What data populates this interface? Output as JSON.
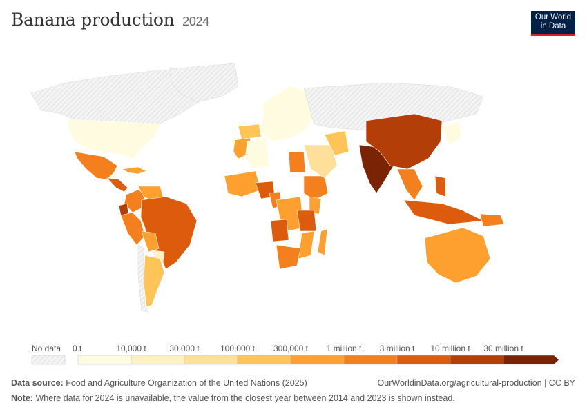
{
  "header": {
    "title": "Banana production",
    "year": "2024"
  },
  "logo": {
    "line1": "Our World",
    "line2": "in Data"
  },
  "legend": {
    "no_data_label": "No data",
    "bins": [
      "0 t",
      "10,000 t",
      "30,000 t",
      "100,000 t",
      "300,000 t",
      "1 million t",
      "3 million t",
      "10 million t",
      "30 million t"
    ],
    "colors": [
      "#fffbe0",
      "#fff2c2",
      "#ffe09a",
      "#ffc457",
      "#fea030",
      "#f4801d",
      "#dd5b0c",
      "#b43e08",
      "#7a2405"
    ]
  },
  "footer": {
    "source_label": "Data source:",
    "source_text": "Food and Agriculture Organization of the United Nations (2025)",
    "url_text": "OurWorldinData.org/agricultural-production | CC BY",
    "note_label": "Note:",
    "note_text": "Where data for 2024 is unavailable, the value from the closest year between 2014 and 2023 is shown instead."
  },
  "regions": [
    {
      "name": "Canada",
      "level": "none"
    },
    {
      "name": "United States",
      "level": 0
    },
    {
      "name": "Mexico",
      "level": 5
    },
    {
      "name": "Central America",
      "level": 6
    },
    {
      "name": "Caribbean",
      "level": 4
    },
    {
      "name": "Colombia",
      "level": 5
    },
    {
      "name": "Venezuela",
      "level": 4
    },
    {
      "name": "Ecuador",
      "level": 7
    },
    {
      "name": "Peru",
      "level": 5
    },
    {
      "name": "Brazil",
      "level": 6
    },
    {
      "name": "Bolivia",
      "level": 4
    },
    {
      "name": "Paraguay",
      "level": 1
    },
    {
      "name": "Argentina",
      "level": 3
    },
    {
      "name": "Chile",
      "level": "none"
    },
    {
      "name": "Greenland",
      "level": "none"
    },
    {
      "name": "Europe",
      "level": 0
    },
    {
      "name": "Spain",
      "level": 3
    },
    {
      "name": "Russia",
      "level": "none"
    },
    {
      "name": "Morocco",
      "level": 4
    },
    {
      "name": "Algeria",
      "level": 0
    },
    {
      "name": "Egypt",
      "level": 5
    },
    {
      "name": "West Africa",
      "level": 4
    },
    {
      "name": "Nigeria",
      "level": 6
    },
    {
      "name": "Cameroon",
      "level": 5
    },
    {
      "name": "DR Congo",
      "level": 4
    },
    {
      "name": "Angola",
      "level": 6
    },
    {
      "name": "Ethiopia",
      "level": 5
    },
    {
      "name": "Kenya",
      "level": 4
    },
    {
      "name": "Tanzania",
      "level": 6
    },
    {
      "name": "Mozambique",
      "level": 4
    },
    {
      "name": "South Africa",
      "level": 5
    },
    {
      "name": "Madagascar",
      "level": 4
    },
    {
      "name": "Saudi Arabia",
      "level": 2
    },
    {
      "name": "Iran",
      "level": 3
    },
    {
      "name": "India",
      "level": 8
    },
    {
      "name": "China",
      "level": 7
    },
    {
      "name": "Southeast Asia",
      "level": 5
    },
    {
      "name": "Philippines",
      "level": 6
    },
    {
      "name": "Indonesia",
      "level": 6
    },
    {
      "name": "Papua New Guinea",
      "level": 5
    },
    {
      "name": "Australia",
      "level": 4
    },
    {
      "name": "Japan",
      "level": 0
    }
  ]
}
